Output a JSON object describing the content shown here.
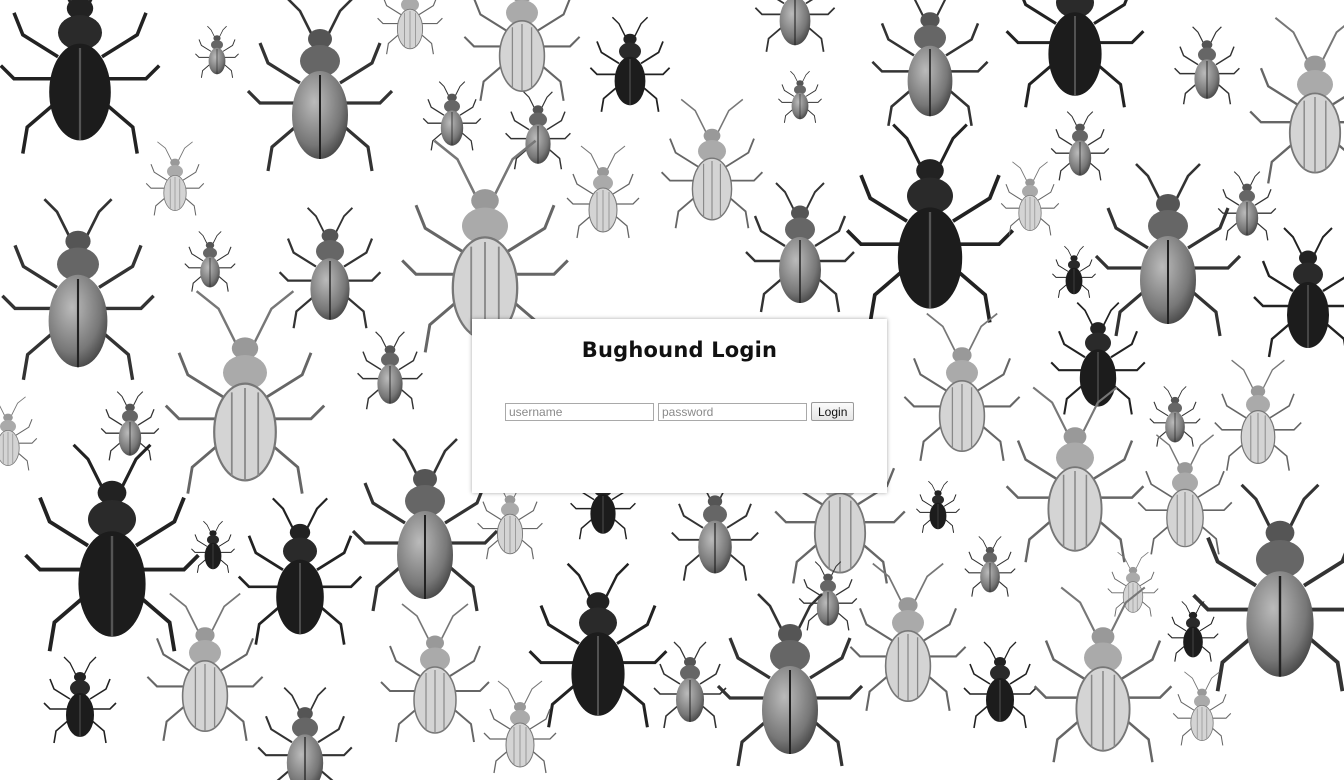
{
  "login": {
    "title": "Bughound Login",
    "username_placeholder": "username",
    "username_value": "",
    "password_placeholder": "password",
    "password_value": "",
    "button_label": "Login"
  },
  "background": {
    "description_icon": "beetle-illustration-icon",
    "palette": [
      "#ffffff",
      "#1a1a1a",
      "#7a7a7a",
      "#bdbdbd"
    ]
  }
}
